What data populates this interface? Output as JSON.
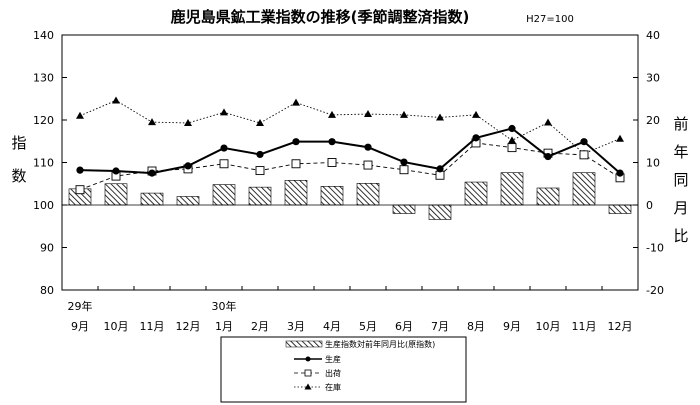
{
  "chart_data": {
    "type": "bar+line",
    "title": "鹿児島県鉱工業指数の推移(季節調整済指数)",
    "title_note": "H27=100",
    "categories": [
      "9月",
      "10月",
      "11月",
      "12月",
      "1月",
      "2月",
      "3月",
      "4月",
      "5月",
      "6月",
      "7月",
      "8月",
      "9月",
      "10月",
      "11月",
      "12月"
    ],
    "year_labels": [
      {
        "index": 0,
        "text": "29年"
      },
      {
        "index": 4,
        "text": "30年"
      }
    ],
    "y_left": {
      "label": [
        "指",
        "数"
      ],
      "ylim": [
        80,
        140
      ],
      "ticks": [
        80,
        90,
        100,
        110,
        120,
        130,
        140
      ]
    },
    "y_right": {
      "label": [
        "前",
        "年",
        "同",
        "月",
        "比"
      ],
      "ylim": [
        -20,
        40
      ],
      "ticks": [
        -20,
        -10,
        0,
        10,
        20,
        30,
        40
      ]
    },
    "bars": {
      "name": "生産指数対前年同月比(原指数)",
      "axis": "right",
      "values": [
        3.8,
        5.0,
        2.8,
        2.0,
        4.8,
        4.2,
        5.8,
        4.4,
        5.1,
        -2.0,
        -3.4,
        5.4,
        7.6,
        4.0,
        7.6,
        -2.0
      ]
    },
    "series": [
      {
        "name": "生産",
        "style": "solid-circle",
        "values": [
          108.2,
          108.0,
          107.5,
          109.2,
          113.4,
          111.9,
          114.9,
          114.9,
          113.6,
          110.1,
          108.5,
          115.8,
          118.0,
          111.4,
          114.9,
          107.5
        ]
      },
      {
        "name": "出荷",
        "style": "dash-square",
        "values": [
          103.6,
          106.8,
          108.0,
          108.5,
          109.7,
          108.1,
          109.7,
          110.0,
          109.4,
          108.3,
          107.0,
          114.6,
          113.5,
          112.2,
          111.8,
          106.4
        ]
      },
      {
        "name": "在庫",
        "style": "dotted-triangle",
        "values": [
          121.0,
          124.6,
          119.5,
          119.3,
          121.8,
          119.3,
          124.1,
          121.2,
          121.4,
          121.2,
          120.6,
          121.2,
          115.2,
          119.4,
          112.1,
          115.6
        ]
      }
    ],
    "grid": false,
    "legend": "bottom"
  }
}
